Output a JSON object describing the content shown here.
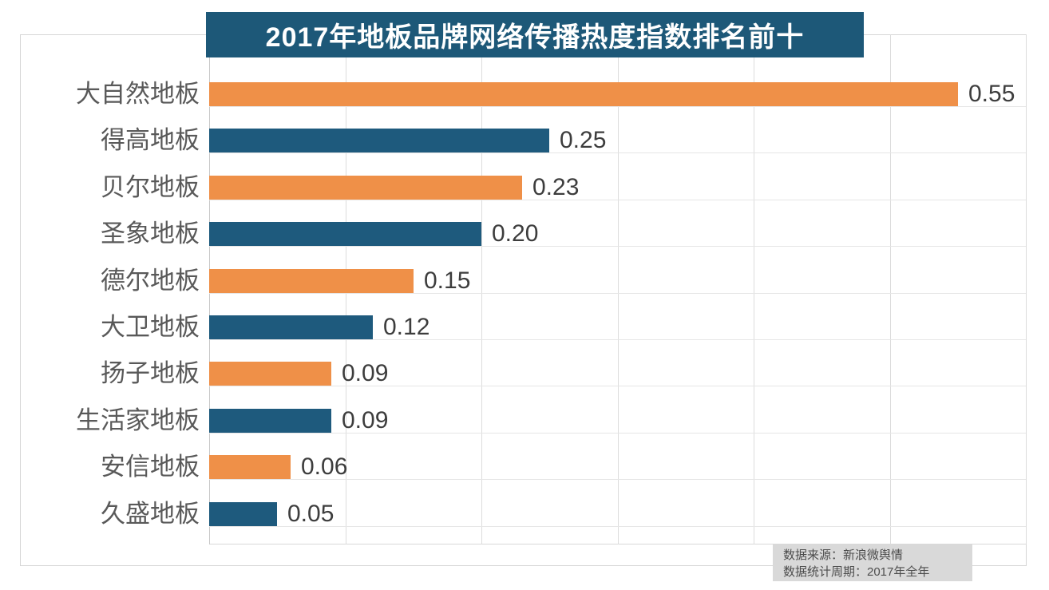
{
  "title": {
    "text": "2017年地板品牌网络传播热度指数排名前十"
  },
  "chart_data": {
    "type": "bar",
    "orientation": "horizontal",
    "title": "2017年地板品牌网络传播热度指数排名前十",
    "categories": [
      "大自然地板",
      "得高地板",
      "贝尔地板",
      "圣象地板",
      "德尔地板",
      "大卫地板",
      "扬子地板",
      "生活家地板",
      "安信地板",
      "久盛地板"
    ],
    "values": [
      0.55,
      0.25,
      0.23,
      0.2,
      0.15,
      0.12,
      0.09,
      0.09,
      0.06,
      0.05
    ],
    "value_labels": [
      "0.55",
      "0.25",
      "0.23",
      "0.20",
      "0.15",
      "0.12",
      "0.09",
      "0.09",
      "0.06",
      "0.05"
    ],
    "xlabel": "",
    "ylabel": "",
    "xlim": [
      0,
      0.6
    ],
    "grid_step": 0.1,
    "grid": true,
    "legend": "none",
    "bar_color_pattern": "alternating",
    "bar_colors": [
      "#ef9048",
      "#1e5a7d"
    ],
    "value_label_position": "outside-end"
  },
  "colors": {
    "banner_bg": "#1d5878",
    "banner_text": "#ffffff",
    "orange_bar": "#ef9048",
    "blue_bar": "#1e5a7d",
    "gridline": "#dcdcdc",
    "axis_line": "#c9c9c9",
    "category_label": "#595959",
    "value_label": "#3d3d3d",
    "card_border": "#d6d6d6",
    "footer_bg": "#d9d9d9",
    "footer_text": "#4d4d4d"
  },
  "footer": {
    "source": "数据来源：新浪微舆情",
    "period": "数据统计周期：2017年全年"
  }
}
